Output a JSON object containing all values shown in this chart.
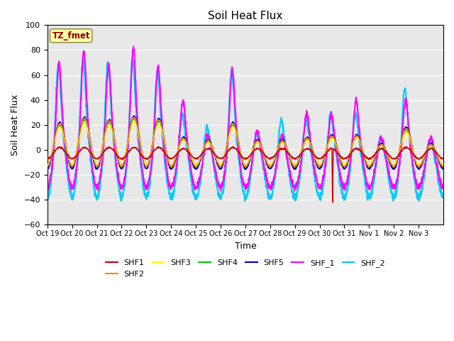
{
  "title": "Soil Heat Flux",
  "xlabel": "Time",
  "ylabel": "Soil Heat Flux",
  "ylim": [
    -60,
    100
  ],
  "yticks": [
    -60,
    -40,
    -20,
    0,
    20,
    40,
    60,
    80,
    100
  ],
  "bg_color": "#e8e8e8",
  "fig_color": "#ffffff",
  "series_colors": {
    "SHF1": "#cc0000",
    "SHF2": "#ff8800",
    "SHF3": "#ffff00",
    "SHF4": "#00cc00",
    "SHF5": "#0000bb",
    "SHF_1": "#ff00ff",
    "SHF_2": "#00ccff"
  },
  "series_linewidths": {
    "SHF1": 1.0,
    "SHF2": 1.0,
    "SHF3": 1.0,
    "SHF4": 1.0,
    "SHF5": 1.2,
    "SHF_1": 1.5,
    "SHF_2": 1.5
  },
  "tz_label": "TZ_fmet",
  "tz_bg": "#ffffaa",
  "tz_text_color": "#880000",
  "n_days": 16,
  "samples_per_day": 144,
  "tick_labels": [
    "Oct 19",
    "Oct 20",
    "Oct 21",
    "Oct 22",
    "Oct 23",
    "Oct 24",
    "Oct 25",
    "Oct 26",
    "Oct 27",
    "Oct 28",
    "Oct 29",
    "Oct 30",
    "Oct 31",
    "Nov 1",
    "Nov 2",
    "Nov 3"
  ],
  "peaks_shf5": [
    22,
    26,
    24,
    27,
    25,
    10,
    8,
    22,
    8,
    8,
    10,
    12,
    12,
    5,
    18,
    5
  ],
  "peaks_shf4": [
    20,
    24,
    22,
    25,
    23,
    9,
    7,
    20,
    7,
    7,
    9,
    10,
    11,
    4,
    16,
    4
  ],
  "peaks_shf3": [
    18,
    21,
    19,
    22,
    20,
    8,
    6,
    18,
    6,
    6,
    8,
    9,
    10,
    4,
    14,
    4
  ],
  "peaks_shf2": [
    21,
    25,
    23,
    26,
    24,
    9,
    7,
    21,
    7,
    7,
    9,
    11,
    11,
    4,
    17,
    4
  ],
  "peaks_shf1": [
    2,
    2,
    2,
    2,
    2,
    1,
    1,
    2,
    1,
    1,
    1,
    1,
    1,
    1,
    2,
    1
  ],
  "peaks_shf_1": [
    70,
    80,
    68,
    82,
    67,
    40,
    12,
    65,
    15,
    12,
    30,
    29,
    40,
    10,
    40,
    10
  ],
  "peaks_shf_2": [
    70,
    75,
    72,
    75,
    65,
    30,
    20,
    65,
    15,
    25,
    25,
    30,
    30,
    10,
    52,
    8
  ],
  "trough_shf_small": -15,
  "trough_shf_1": -30,
  "trough_shf_2": -38,
  "shf1_spike_day": 11,
  "shf1_spike_val": -42
}
